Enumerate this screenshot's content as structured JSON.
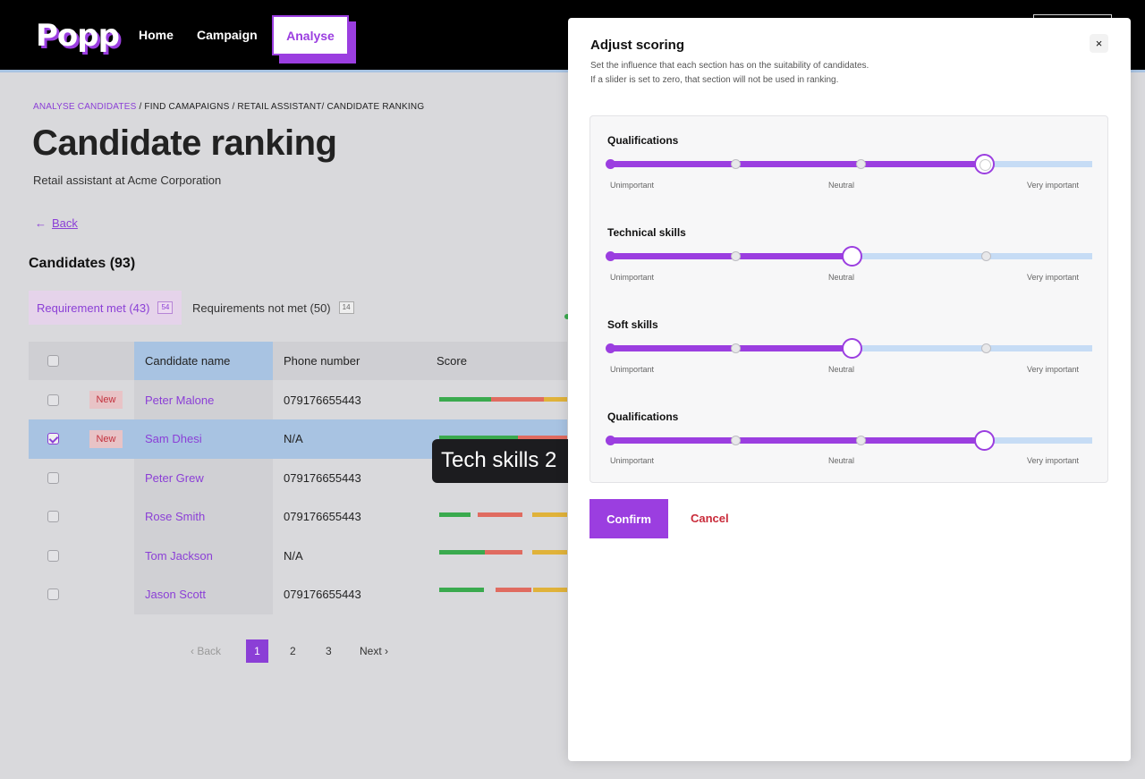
{
  "brand": {
    "logo": "Popp",
    "accent": "#9b3ee0",
    "link": "#8b3fd6",
    "danger": "#c92b3a"
  },
  "nav": {
    "home": "Home",
    "campaign": "Campaign",
    "analyse": "Analyse"
  },
  "breadcrumb": {
    "first": "ANALYSE CANDIDATES",
    "rest": "/ FIND CAMAPAIGNS / RETAIL ASSISTANT/  CANDIDATE RANKING"
  },
  "page": {
    "title": "Candidate ranking",
    "subtitle": "Retail assistant at Acme Corporation",
    "back": "Back",
    "candidates_heading": "Candidates (93)"
  },
  "tabs": [
    {
      "label": "Requirement met (43)",
      "count": "54"
    },
    {
      "label": "Requirements not met (50)",
      "count": "14"
    }
  ],
  "table": {
    "columns": {
      "name": "Candidate name",
      "phone": "Phone number",
      "score": "Score"
    },
    "new_label": "New",
    "rows": [
      {
        "name": "Peter Malone",
        "phone": "079176655443",
        "is_new": true,
        "checked": false
      },
      {
        "name": "Sam Dhesi",
        "phone": "N/A",
        "is_new": true,
        "checked": true
      },
      {
        "name": "Peter Grew",
        "phone": "079176655443",
        "is_new": false,
        "checked": false
      },
      {
        "name": "Rose Smith",
        "phone": "079176655443",
        "is_new": false,
        "checked": false
      },
      {
        "name": "Tom Jackson",
        "phone": "N/A",
        "is_new": false,
        "checked": false
      },
      {
        "name": "Jason Scott",
        "phone": "079176655443",
        "is_new": false,
        "checked": false
      }
    ]
  },
  "tooltip": {
    "text": "Tech skills 2"
  },
  "pagination": {
    "back": "Back",
    "pages": [
      "1",
      "2",
      "3"
    ],
    "current": "1",
    "next": "Next"
  },
  "modal": {
    "title": "Adjust scoring",
    "description_line1": "Set the influence that each section has on the suitability of candidates.",
    "description_line2": "If a slider is set to zero, that section will not be used in ranking.",
    "close": "×",
    "tick_labels": {
      "low": "Unimportant",
      "mid": "Neutral",
      "high": "Very important"
    },
    "sliders": [
      {
        "label": "Qualifications",
        "value": 0.775
      },
      {
        "label": "Technical skills",
        "value": 0.5
      },
      {
        "label": "Soft skills",
        "value": 0.5
      },
      {
        "label": "Qualifications",
        "value": 0.775
      }
    ],
    "confirm": "Confirm",
    "cancel": "Cancel"
  }
}
